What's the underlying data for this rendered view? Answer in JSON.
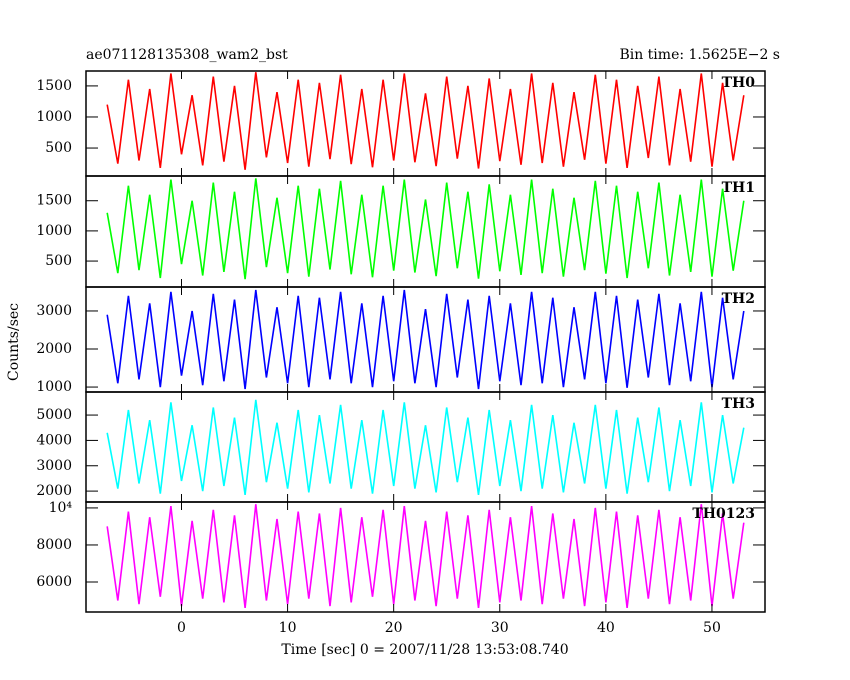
{
  "title": "ae071128135308_wam2_bst",
  "subtitle": "Bin time: 1.5625E−2 s",
  "ylabel": "Counts/sec",
  "xlabel": "Time [sec] 0 = 2007/11/28 13:53:08.740",
  "chart_data": [
    {
      "type": "line",
      "name": "TH0",
      "color": "#ff0000",
      "xlim": [
        -9,
        55
      ],
      "xticks": [
        0,
        10,
        20,
        30,
        40,
        50
      ],
      "ylim": [
        50,
        1740
      ],
      "yticks": [
        500,
        1000,
        1500
      ],
      "x": [
        -7,
        -6,
        -5,
        -4,
        -3,
        -2,
        -1,
        0,
        1,
        2,
        3,
        4,
        5,
        6,
        7,
        8,
        9,
        10,
        11,
        12,
        13,
        14,
        15,
        16,
        17,
        18,
        19,
        20,
        21,
        22,
        23,
        24,
        25,
        26,
        27,
        28,
        29,
        30,
        31,
        32,
        33,
        34,
        35,
        36,
        37,
        38,
        39,
        40,
        41,
        42,
        43,
        44,
        45,
        46,
        47,
        48,
        49,
        50,
        51,
        52,
        53
      ],
      "values": [
        1200,
        250,
        1600,
        300,
        1450,
        180,
        1700,
        400,
        1350,
        220,
        1650,
        280,
        1500,
        150,
        1720,
        350,
        1400,
        260,
        1600,
        200,
        1550,
        320,
        1680,
        240,
        1450,
        190,
        1600,
        300,
        1700,
        270,
        1380,
        210,
        1650,
        330,
        1500,
        170,
        1620,
        290,
        1450,
        230,
        1700,
        260,
        1550,
        200,
        1400,
        310,
        1680,
        250,
        1600,
        180,
        1500,
        340,
        1650,
        220,
        1450,
        280,
        1700,
        200,
        1550,
        300,
        1350
      ]
    },
    {
      "type": "line",
      "name": "TH1",
      "color": "#00ff00",
      "xlim": [
        -9,
        55
      ],
      "xticks": [
        0,
        10,
        20,
        30,
        40,
        50
      ],
      "ylim": [
        70,
        1910
      ],
      "yticks": [
        500,
        1000,
        1500
      ],
      "x": [
        -7,
        -6,
        -5,
        -4,
        -3,
        -2,
        -1,
        0,
        1,
        2,
        3,
        4,
        5,
        6,
        7,
        8,
        9,
        10,
        11,
        12,
        13,
        14,
        15,
        16,
        17,
        18,
        19,
        20,
        21,
        22,
        23,
        24,
        25,
        26,
        27,
        28,
        29,
        30,
        31,
        32,
        33,
        34,
        35,
        36,
        37,
        38,
        39,
        40,
        41,
        42,
        43,
        44,
        45,
        46,
        47,
        48,
        49,
        50,
        51,
        52,
        53
      ],
      "values": [
        1300,
        300,
        1750,
        350,
        1600,
        220,
        1850,
        450,
        1500,
        260,
        1800,
        320,
        1650,
        200,
        1870,
        400,
        1550,
        300,
        1750,
        240,
        1700,
        360,
        1830,
        280,
        1600,
        230,
        1750,
        340,
        1850,
        310,
        1520,
        250,
        1800,
        380,
        1650,
        210,
        1770,
        330,
        1600,
        270,
        1850,
        300,
        1700,
        240,
        1550,
        350,
        1830,
        290,
        1750,
        220,
        1650,
        380,
        1800,
        260,
        1600,
        320,
        1850,
        240,
        1700,
        340,
        1500
      ]
    },
    {
      "type": "line",
      "name": "TH2",
      "color": "#0000ff",
      "xlim": [
        -9,
        55
      ],
      "xticks": [
        0,
        10,
        20,
        30,
        40,
        50
      ],
      "ylim": [
        870,
        3630
      ],
      "yticks": [
        1000,
        2000,
        3000
      ],
      "x": [
        -7,
        -6,
        -5,
        -4,
        -3,
        -2,
        -1,
        0,
        1,
        2,
        3,
        4,
        5,
        6,
        7,
        8,
        9,
        10,
        11,
        12,
        13,
        14,
        15,
        16,
        17,
        18,
        19,
        20,
        21,
        22,
        23,
        24,
        25,
        26,
        27,
        28,
        29,
        30,
        31,
        32,
        33,
        34,
        35,
        36,
        37,
        38,
        39,
        40,
        41,
        42,
        43,
        44,
        45,
        46,
        47,
        48,
        49,
        50,
        51,
        52,
        53
      ],
      "values": [
        2900,
        1100,
        3400,
        1200,
        3200,
        1000,
        3500,
        1300,
        3000,
        1050,
        3450,
        1150,
        3300,
        950,
        3550,
        1250,
        3100,
        1100,
        3400,
        1000,
        3350,
        1200,
        3500,
        1100,
        3200,
        1000,
        3400,
        1150,
        3550,
        1100,
        3050,
        1000,
        3450,
        1250,
        3300,
        950,
        3400,
        1150,
        3200,
        1050,
        3500,
        1100,
        3350,
        1000,
        3100,
        1200,
        3500,
        1100,
        3400,
        980,
        3300,
        1250,
        3450,
        1050,
        3200,
        1150,
        3500,
        1000,
        3350,
        1200,
        3000
      ]
    },
    {
      "type": "line",
      "name": "TH3",
      "color": "#00ffff",
      "xlim": [
        -9,
        55
      ],
      "xticks": [
        0,
        10,
        20,
        30,
        40,
        50
      ],
      "ylim": [
        1570,
        5910
      ],
      "yticks": [
        2000,
        3000,
        4000,
        5000
      ],
      "x": [
        -7,
        -6,
        -5,
        -4,
        -3,
        -2,
        -1,
        0,
        1,
        2,
        3,
        4,
        5,
        6,
        7,
        8,
        9,
        10,
        11,
        12,
        13,
        14,
        15,
        16,
        17,
        18,
        19,
        20,
        21,
        22,
        23,
        24,
        25,
        26,
        27,
        28,
        29,
        30,
        31,
        32,
        33,
        34,
        35,
        36,
        37,
        38,
        39,
        40,
        41,
        42,
        43,
        44,
        45,
        46,
        47,
        48,
        49,
        50,
        51,
        52,
        53
      ],
      "values": [
        4300,
        2100,
        5200,
        2300,
        4800,
        1900,
        5500,
        2400,
        4600,
        2000,
        5300,
        2200,
        4900,
        1850,
        5600,
        2350,
        4700,
        2100,
        5200,
        1950,
        5000,
        2300,
        5400,
        2100,
        4800,
        1900,
        5200,
        2200,
        5500,
        2100,
        4600,
        1950,
        5300,
        2350,
        4900,
        1850,
        5200,
        2200,
        4800,
        2000,
        5400,
        2100,
        5000,
        1950,
        4700,
        2300,
        5400,
        2100,
        5200,
        1900,
        4900,
        2350,
        5300,
        2000,
        4800,
        2200,
        5500,
        1950,
        5000,
        2300,
        4500
      ]
    },
    {
      "type": "line",
      "name": "TH0123",
      "color": "#ff00ff",
      "xlim": [
        -9,
        55
      ],
      "xticks": [
        0,
        10,
        20,
        30,
        40,
        50
      ],
      "ylim": [
        4380,
        10320
      ],
      "yticks": [
        6000,
        8000,
        {
          "value": 10000,
          "label": "10⁴"
        }
      ],
      "x": [
        -7,
        -6,
        -5,
        -4,
        -3,
        -2,
        -1,
        0,
        1,
        2,
        3,
        4,
        5,
        6,
        7,
        8,
        9,
        10,
        11,
        12,
        13,
        14,
        15,
        16,
        17,
        18,
        19,
        20,
        21,
        22,
        23,
        24,
        25,
        26,
        27,
        28,
        29,
        30,
        31,
        32,
        33,
        34,
        35,
        36,
        37,
        38,
        39,
        40,
        41,
        42,
        43,
        44,
        45,
        46,
        47,
        48,
        49,
        50,
        51,
        52,
        53
      ],
      "values": [
        9000,
        5000,
        9800,
        4800,
        9500,
        5200,
        10100,
        4700,
        9300,
        5100,
        9900,
        4900,
        9600,
        4600,
        10200,
        5000,
        9400,
        4800,
        9800,
        5100,
        9700,
        4700,
        10000,
        4900,
        9500,
        5200,
        9900,
        4800,
        10100,
        5000,
        9300,
        4700,
        9800,
        5100,
        9600,
        4600,
        9900,
        4900,
        9500,
        5000,
        10100,
        4800,
        9700,
        5100,
        9400,
        4700,
        10000,
        4900,
        9800,
        4600,
        9600,
        5100,
        9900,
        4800,
        9500,
        5000,
        10200,
        4700,
        9700,
        5100,
        9200
      ]
    }
  ]
}
